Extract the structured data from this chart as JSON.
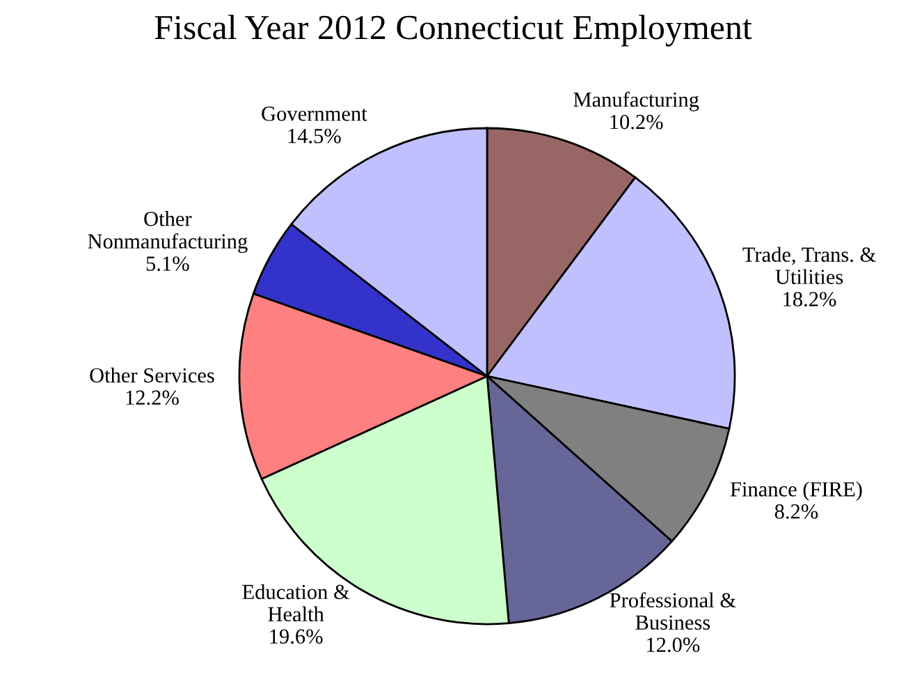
{
  "chart_data": {
    "type": "pie",
    "title": "Fiscal Year 2012 Connecticut Employment",
    "categories": [
      "Manufacturing",
      "Trade, Trans. &\nUtilities",
      "Finance (FIRE)",
      "Professional &\nBusiness",
      "Education &\nHealth",
      "Other Services",
      "Other\nNonmanufacturing",
      "Government"
    ],
    "values": [
      10.2,
      18.2,
      8.2,
      12.0,
      19.6,
      12.2,
      5.1,
      14.5
    ],
    "value_labels": [
      "10.2%",
      "18.2%",
      "8.2%",
      "12.0%",
      "19.6%",
      "12.2%",
      "5.1%",
      "14.5%"
    ],
    "colors": [
      "#996666",
      "#c0c0ff",
      "#808080",
      "#666699",
      "#ccffcc",
      "#ff8080",
      "#3333cc",
      "#c0c0ff"
    ]
  }
}
